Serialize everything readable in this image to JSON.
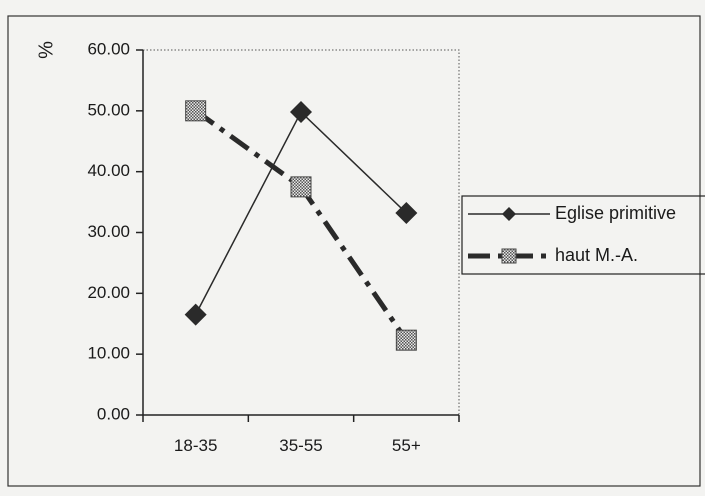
{
  "chart_data": {
    "type": "line",
    "title": "",
    "xlabel": "",
    "ylabel": "%",
    "categories": [
      "18-35",
      "35-55",
      "55+"
    ],
    "ylim": [
      0,
      60
    ],
    "yticks": [
      "0.00",
      "10.00",
      "20.00",
      "30.00",
      "40.00",
      "50.00",
      "60.00"
    ],
    "grid": false,
    "legend_position": "right",
    "series": [
      {
        "name": "Eglise primitive",
        "values": [
          16.5,
          49.8,
          33.2
        ],
        "color": "#2a2a2a",
        "marker": "diamond",
        "line": "solid"
      },
      {
        "name": "haut M.-A.",
        "values": [
          50.0,
          37.5,
          12.3
        ],
        "color": "#2a2a2a",
        "marker": "square-hatched",
        "line": "dash-dot"
      }
    ]
  }
}
